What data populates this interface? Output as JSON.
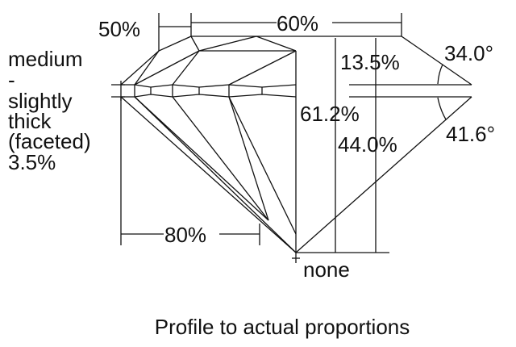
{
  "diagram": {
    "table_pct": "60%",
    "crown_half_pct": "50%",
    "crown_height_pct": "13.5%",
    "crown_angle": "34.0°",
    "total_depth_pct": "61.2%",
    "pavilion_depth_pct": "44.0%",
    "pavilion_angle": "41.6°",
    "lower_half_pct": "80%",
    "culet": "none",
    "girdle_lines": [
      "medium",
      "-",
      "slightly",
      "thick",
      "(faceted)",
      "3.5%"
    ],
    "caption": "Profile to actual proportions"
  }
}
